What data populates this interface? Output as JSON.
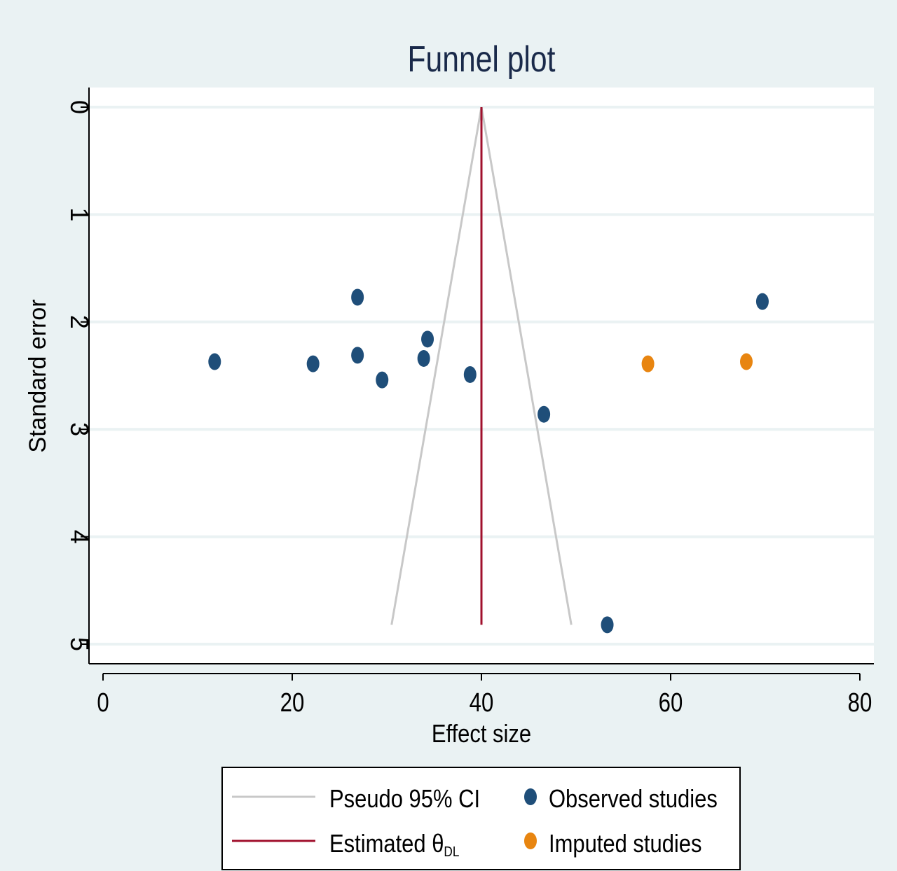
{
  "chart_data": {
    "type": "scatter",
    "title": "Funnel plot",
    "xlabel": "Effect size",
    "ylabel": "Standard error",
    "xlim": [
      0,
      80
    ],
    "ylim": [
      5,
      0
    ],
    "y_reversed": true,
    "x_ticks": [
      "0",
      "20",
      "40",
      "60",
      "80"
    ],
    "y_ticks": [
      "0",
      "1",
      "2",
      "3",
      "4",
      "5"
    ],
    "grid": "horizontal",
    "legend_position": "bottom",
    "colors": {
      "background": "#eaf2f3",
      "plot_area": "#ffffff",
      "grid": "#eaf2f3",
      "title": "#1a2a4a",
      "observed": "#1f4e79",
      "imputed": "#e88510",
      "ci_line": "#c8c8c8",
      "estimate_line": "#a0102c"
    },
    "estimate": {
      "x": 40,
      "se_range": [
        0,
        4.82
      ]
    },
    "pseudo_ci": [
      {
        "x": [
          40,
          30.5
        ],
        "se": [
          0,
          4.82
        ]
      },
      {
        "x": [
          40,
          49.5
        ],
        "se": [
          0,
          4.82
        ]
      }
    ],
    "series": [
      {
        "name": "Observed studies",
        "points": [
          {
            "x": 11.8,
            "se": 2.37
          },
          {
            "x": 22.2,
            "se": 2.39
          },
          {
            "x": 26.9,
            "se": 1.77
          },
          {
            "x": 26.9,
            "se": 2.31
          },
          {
            "x": 29.5,
            "se": 2.54
          },
          {
            "x": 33.9,
            "se": 2.34
          },
          {
            "x": 34.3,
            "se": 2.16
          },
          {
            "x": 38.8,
            "se": 2.49
          },
          {
            "x": 46.6,
            "se": 2.86
          },
          {
            "x": 53.3,
            "se": 4.82
          },
          {
            "x": 69.7,
            "se": 1.81
          }
        ]
      },
      {
        "name": "Imputed studies",
        "points": [
          {
            "x": 57.6,
            "se": 2.39
          },
          {
            "x": 68.0,
            "se": 2.37
          }
        ]
      }
    ],
    "legend": [
      {
        "label": "Pseudo 95% CI",
        "symbol": "line",
        "color": "#c8c8c8"
      },
      {
        "label": "Estimated θ",
        "subscript": "DL",
        "symbol": "line",
        "color": "#a0102c"
      },
      {
        "label": "Observed studies",
        "symbol": "dot",
        "color": "#1f4e79"
      },
      {
        "label": "Imputed studies",
        "symbol": "dot",
        "color": "#e88510"
      }
    ]
  }
}
